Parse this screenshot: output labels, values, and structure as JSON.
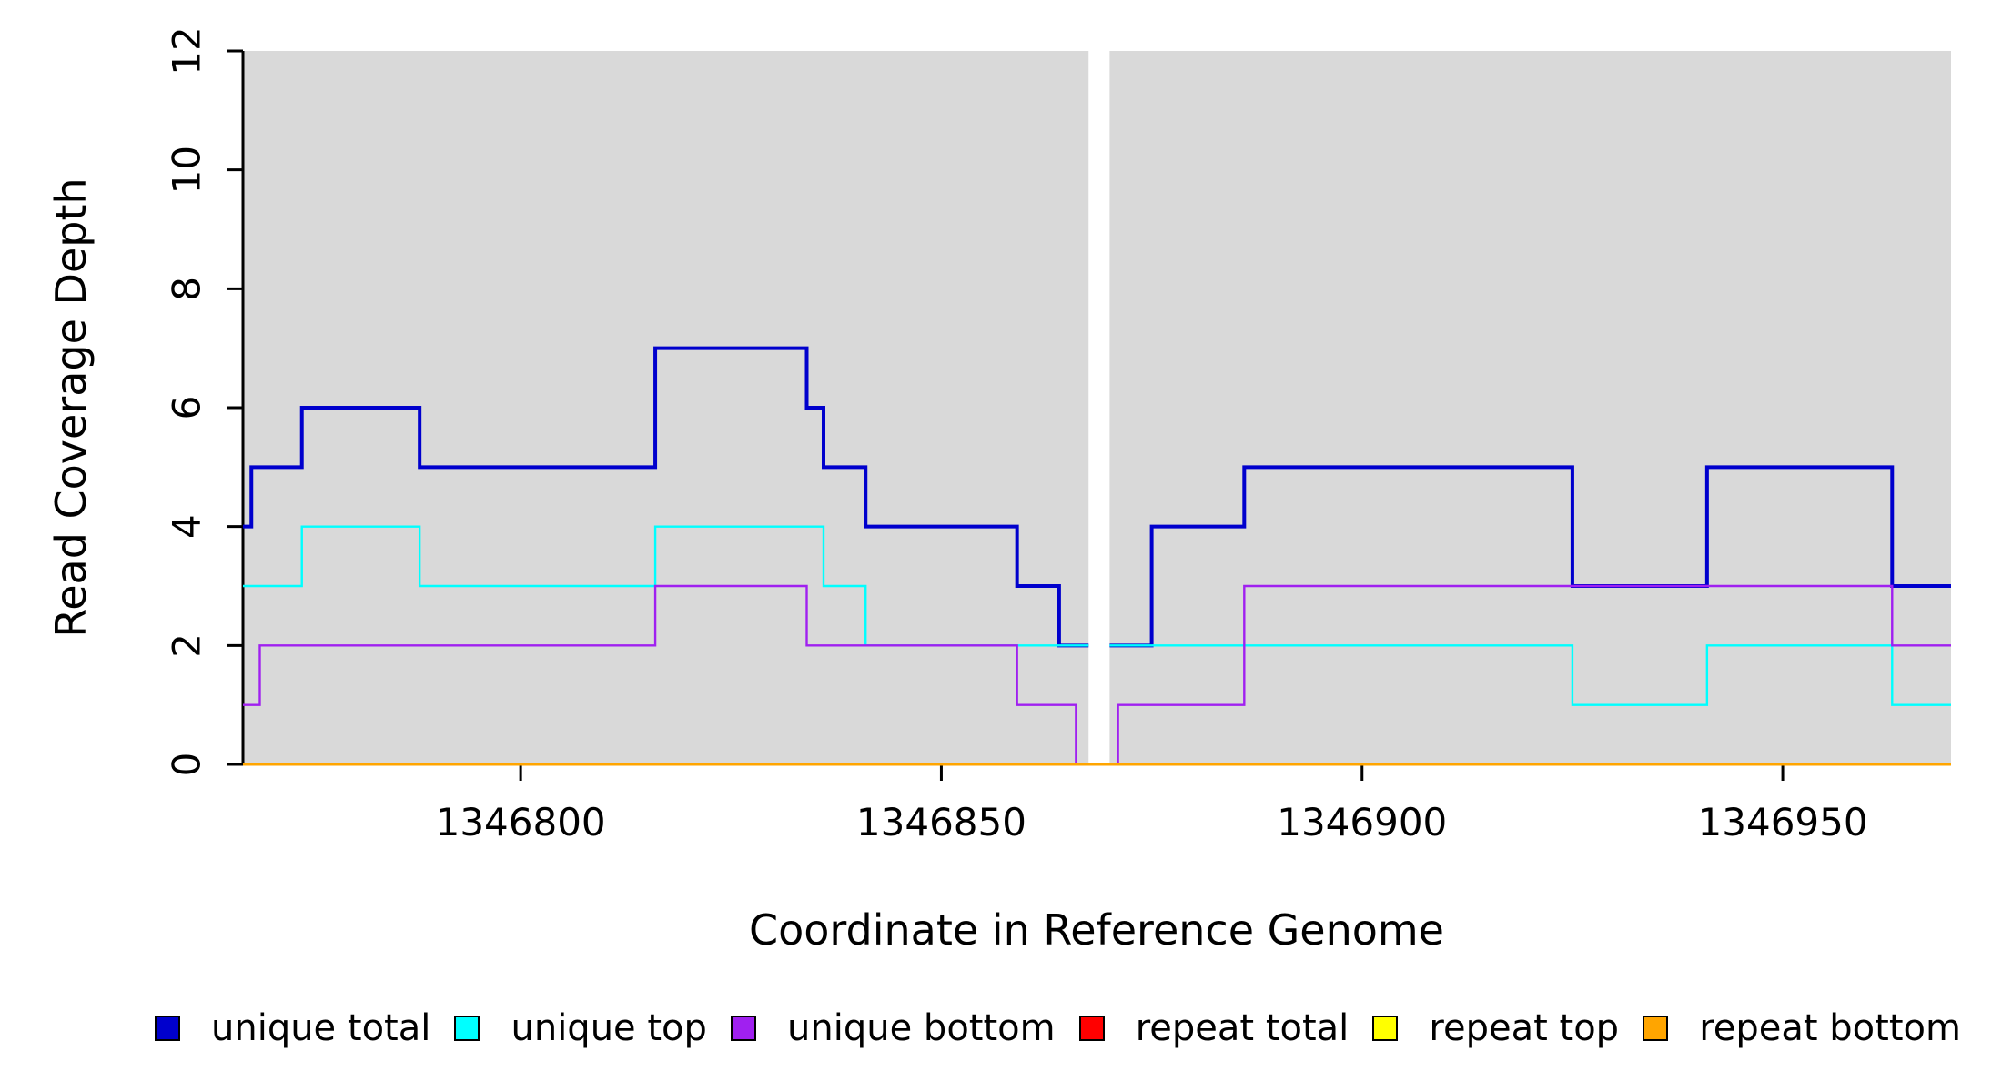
{
  "figure": {
    "background": "#FFFFFF",
    "plot_background": "#D9D9D9",
    "axis_color": "#000000",
    "gap_color": "#FFFFFF"
  },
  "chart_data": {
    "type": "line",
    "step": true,
    "title": "",
    "xlabel": "Coordinate in Reference Genome",
    "ylabel": "Read Coverage Depth",
    "xlim": [
      1346767,
      1346970
    ],
    "ylim": [
      0,
      12
    ],
    "x_ticks": [
      1346800,
      1346850,
      1346900,
      1346950
    ],
    "y_ticks": [
      0,
      2,
      4,
      6,
      8,
      10,
      12
    ],
    "grid": false,
    "legend_position": "bottom",
    "gap_band": [
      1346867.5,
      1346870
    ],
    "series": [
      {
        "name": "unique total",
        "color": "#0000CD",
        "width": 4,
        "segments": [
          [
            [
              1346767,
              4
            ],
            [
              1346768,
              5
            ],
            [
              1346774,
              6
            ],
            [
              1346788,
              5
            ],
            [
              1346816,
              7
            ],
            [
              1346834,
              6
            ],
            [
              1346836,
              5
            ],
            [
              1346841,
              4
            ],
            [
              1346859,
              3
            ],
            [
              1346864,
              2
            ],
            [
              1346867.5,
              2
            ]
          ],
          [
            [
              1346870,
              2
            ],
            [
              1346875,
              4
            ],
            [
              1346886,
              5
            ],
            [
              1346925,
              3
            ],
            [
              1346941,
              5
            ],
            [
              1346963,
              3
            ],
            [
              1346970,
              3
            ]
          ]
        ]
      },
      {
        "name": "unique top",
        "color": "#00FFFF",
        "width": 2.4,
        "segments": [
          [
            [
              1346767,
              3
            ],
            [
              1346774,
              4
            ],
            [
              1346788,
              3
            ],
            [
              1346816,
              4
            ],
            [
              1346836,
              3
            ],
            [
              1346841,
              2
            ],
            [
              1346867.5,
              2
            ]
          ],
          [
            [
              1346870,
              2
            ],
            [
              1346925,
              1
            ],
            [
              1346941,
              2
            ],
            [
              1346963,
              1
            ],
            [
              1346970,
              1
            ]
          ]
        ]
      },
      {
        "name": "unique bottom",
        "color": "#A020F0",
        "width": 2.4,
        "segments": [
          [
            [
              1346767,
              1
            ],
            [
              1346769,
              2
            ],
            [
              1346816,
              3
            ],
            [
              1346834,
              2
            ],
            [
              1346859,
              1
            ],
            [
              1346866,
              0
            ],
            [
              1346867.5,
              0
            ]
          ],
          [
            [
              1346870,
              0
            ],
            [
              1346871,
              1
            ],
            [
              1346886,
              3
            ],
            [
              1346963,
              2
            ],
            [
              1346970,
              2
            ]
          ]
        ]
      },
      {
        "name": "repeat total",
        "color": "#FF0000",
        "width": 2.4,
        "segments": [
          [
            [
              1346767,
              0
            ],
            [
              1346970,
              0
            ]
          ]
        ]
      },
      {
        "name": "repeat top",
        "color": "#FFFF00",
        "width": 2.4,
        "segments": [
          [
            [
              1346767,
              0
            ],
            [
              1346970,
              0
            ]
          ]
        ]
      },
      {
        "name": "repeat bottom",
        "color": "#FFA500",
        "width": 3,
        "segments": [
          [
            [
              1346767,
              0
            ],
            [
              1346970,
              0
            ]
          ]
        ]
      }
    ],
    "legend": [
      {
        "label": "unique total",
        "color": "#0000CD"
      },
      {
        "label": "unique top",
        "color": "#00FFFF"
      },
      {
        "label": "unique bottom",
        "color": "#A020F0"
      },
      {
        "label": "repeat total",
        "color": "#FF0000"
      },
      {
        "label": "repeat top",
        "color": "#FFFF00"
      },
      {
        "label": "repeat bottom",
        "color": "#FFA500"
      }
    ]
  }
}
